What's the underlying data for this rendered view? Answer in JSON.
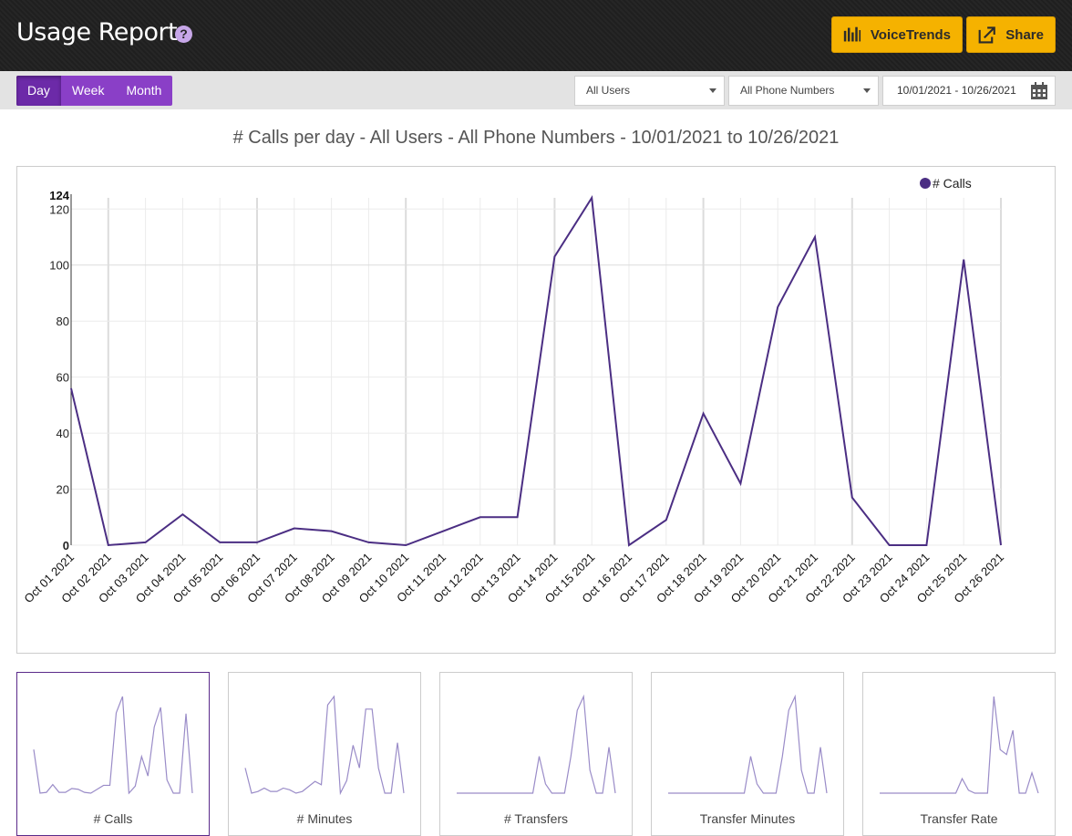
{
  "header": {
    "title": "Usage Reports",
    "help_glyph": "?",
    "voicetrends_label": "VoiceTrends",
    "share_label": "Share",
    "accent": "#f5b200"
  },
  "toolbar": {
    "periods": [
      "Day",
      "Week",
      "Month"
    ],
    "active_period": "Day",
    "users_select": "All Users",
    "phones_select": "All Phone Numbers",
    "date_range": "10/01/2021 - 10/26/2021"
  },
  "main": {
    "chart_title": "# Calls per day - All Users - All Phone Numbers - 10/01/2021 to 10/26/2021"
  },
  "chart_data": {
    "type": "line",
    "categories": [
      "Oct 01 2021",
      "Oct 02 2021",
      "Oct 03 2021",
      "Oct 04 2021",
      "Oct 05 2021",
      "Oct 06 2021",
      "Oct 07 2021",
      "Oct 08 2021",
      "Oct 09 2021",
      "Oct 10 2021",
      "Oct 11 2021",
      "Oct 12 2021",
      "Oct 13 2021",
      "Oct 14 2021",
      "Oct 15 2021",
      "Oct 16 2021",
      "Oct 17 2021",
      "Oct 18 2021",
      "Oct 19 2021",
      "Oct 20 2021",
      "Oct 21 2021",
      "Oct 22 2021",
      "Oct 23 2021",
      "Oct 24 2021",
      "Oct 25 2021",
      "Oct 26 2021"
    ],
    "series": [
      {
        "name": "# Calls",
        "color": "#4b2e83",
        "values": [
          56,
          0,
          1,
          11,
          1,
          1,
          6,
          5,
          1,
          0,
          5,
          10,
          10,
          103,
          124,
          0,
          9,
          47,
          22,
          85,
          110,
          17,
          0,
          0,
          102,
          0
        ]
      }
    ],
    "yticks": [
      0,
      20,
      40,
      60,
      80,
      100,
      120
    ],
    "ymax_label": "124",
    "ylim": [
      0,
      124
    ],
    "grid": true,
    "legend_position": "top-right"
  },
  "thumbnails": [
    {
      "label": "# Calls",
      "selected": true,
      "values": [
        56,
        0,
        1,
        11,
        1,
        1,
        6,
        5,
        1,
        0,
        5,
        10,
        10,
        103,
        124,
        0,
        9,
        47,
        22,
        85,
        110,
        17,
        0,
        0,
        102,
        0
      ]
    },
    {
      "label": "# Minutes",
      "selected": false,
      "values": [
        30,
        0,
        2,
        6,
        2,
        2,
        6,
        4,
        0,
        2,
        8,
        14,
        10,
        105,
        115,
        0,
        15,
        57,
        30,
        100,
        100,
        30,
        0,
        0,
        60,
        0
      ]
    },
    {
      "label": "# Transfers",
      "selected": false,
      "values": [
        0,
        0,
        0,
        0,
        0,
        0,
        0,
        0,
        0,
        0,
        0,
        0,
        0,
        40,
        10,
        0,
        0,
        0,
        40,
        90,
        105,
        25,
        0,
        0,
        50,
        0
      ]
    },
    {
      "label": "Transfer Minutes",
      "selected": false,
      "values": [
        0,
        0,
        0,
        0,
        0,
        0,
        0,
        0,
        0,
        0,
        0,
        0,
        0,
        40,
        10,
        0,
        0,
        0,
        40,
        90,
        105,
        25,
        0,
        0,
        50,
        0
      ]
    },
    {
      "label": "Transfer Rate",
      "selected": false,
      "values": [
        0,
        0,
        0,
        0,
        0,
        0,
        0,
        0,
        0,
        0,
        0,
        0,
        0,
        15,
        3,
        0,
        0,
        0,
        100,
        45,
        40,
        65,
        0,
        0,
        21,
        0
      ]
    }
  ]
}
